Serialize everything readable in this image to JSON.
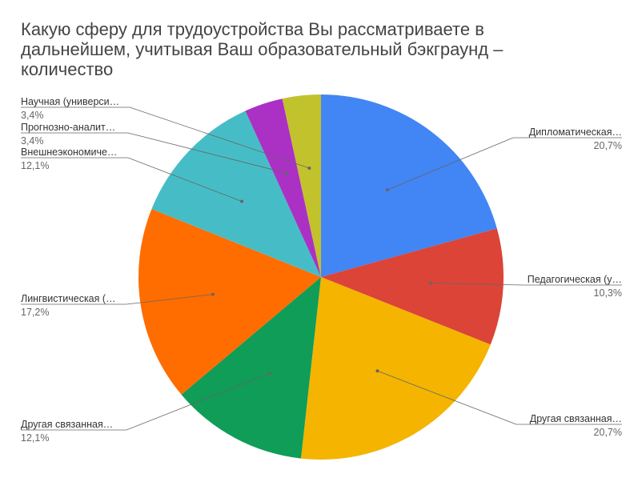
{
  "chart_data": {
    "type": "pie",
    "title_lines": [
      "Какую сферу для трудоустройства Вы рассматриваете  в",
      "дальнейшем, учитывая Ваш образовательный бэкграунд –",
      "количество"
    ],
    "slices": [
      {
        "label": "Дипломатическая…",
        "value": 20.7,
        "display": "20,7%",
        "color": "#4285f4",
        "side": "right"
      },
      {
        "label": "Педагогическая (у…",
        "value": 10.3,
        "display": "10,3%",
        "color": "#db4437",
        "side": "right"
      },
      {
        "label": "Другая связанная…",
        "value": 20.7,
        "display": "20,7%",
        "color": "#f4b400",
        "side": "right"
      },
      {
        "label": "Другая связанная…",
        "value": 12.1,
        "display": "12,1%",
        "color": "#0f9d58",
        "side": "left"
      },
      {
        "label": "Лингвистическая (…",
        "value": 17.2,
        "display": "17,2%",
        "color": "#ff6d00",
        "side": "left"
      },
      {
        "label": "Внешнеэкономиче…",
        "value": 12.1,
        "display": "12,1%",
        "color": "#46bdc6",
        "side": "left"
      },
      {
        "label": "Прогнозно-аналит…",
        "value": 3.4,
        "display": "3,4%",
        "color": "#ab30c4",
        "side": "left"
      },
      {
        "label": "Научная (универси…",
        "value": 3.4,
        "display": "3,4%",
        "color": "#c2c22d",
        "side": "left"
      }
    ]
  }
}
